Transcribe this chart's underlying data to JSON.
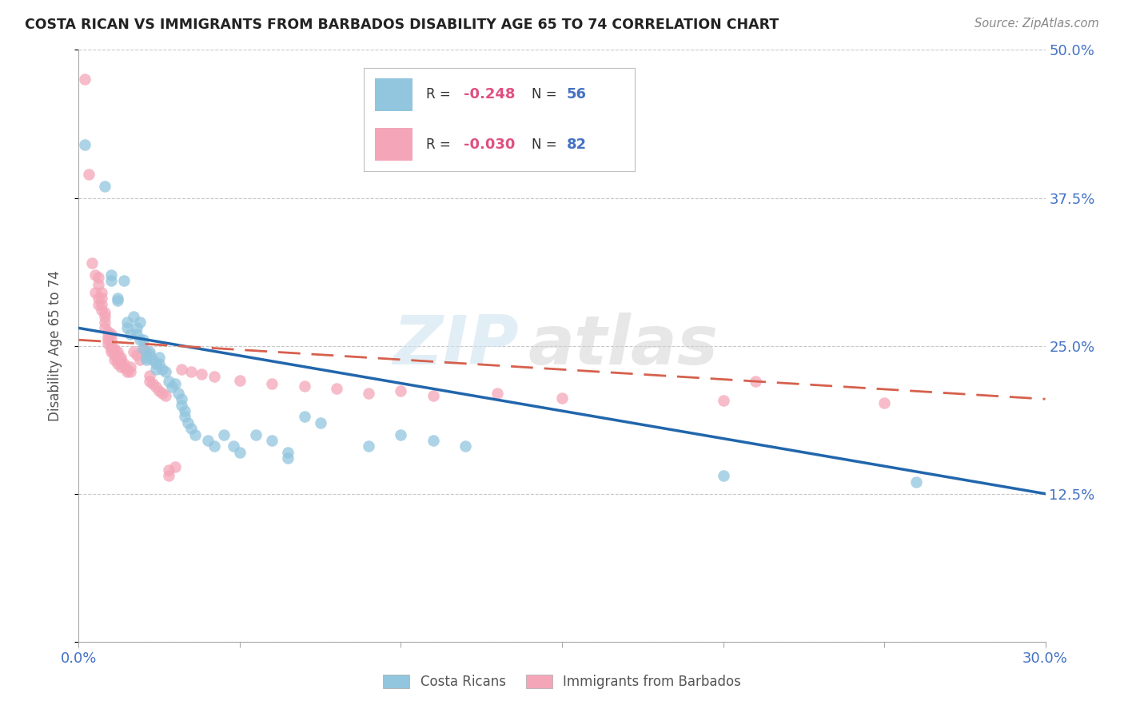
{
  "title": "COSTA RICAN VS IMMIGRANTS FROM BARBADOS DISABILITY AGE 65 TO 74 CORRELATION CHART",
  "source": "Source: ZipAtlas.com",
  "ylabel": "Disability Age 65 to 74",
  "xlim": [
    0.0,
    0.3
  ],
  "ylim": [
    0.0,
    0.5
  ],
  "yticks": [
    0.0,
    0.125,
    0.25,
    0.375,
    0.5
  ],
  "ytick_labels": [
    "",
    "12.5%",
    "25.0%",
    "37.5%",
    "50.0%"
  ],
  "xticks": [
    0.0,
    0.05,
    0.1,
    0.15,
    0.2,
    0.25,
    0.3
  ],
  "xtick_labels": [
    "0.0%",
    "",
    "",
    "",
    "",
    "",
    "30.0%"
  ],
  "blue_color": "#92c5de",
  "pink_color": "#f4a6b8",
  "trendline_blue": "#2166ac",
  "trendline_pink": "#d6604d",
  "tick_label_color": "#4472c4",
  "grid_color": "#c8c8c8",
  "watermark_zip": "ZIP",
  "watermark_atlas": "atlas",
  "trendline_blue_x0": 0.0,
  "trendline_blue_y0": 0.265,
  "trendline_blue_x1": 0.3,
  "trendline_blue_y1": 0.125,
  "trendline_pink_x0": 0.0,
  "trendline_pink_y0": 0.255,
  "trendline_pink_x1": 0.3,
  "trendline_pink_y1": 0.205,
  "blue_scatter": [
    [
      0.002,
      0.42
    ],
    [
      0.008,
      0.385
    ],
    [
      0.01,
      0.31
    ],
    [
      0.01,
      0.305
    ],
    [
      0.012,
      0.29
    ],
    [
      0.012,
      0.288
    ],
    [
      0.014,
      0.305
    ],
    [
      0.015,
      0.27
    ],
    [
      0.015,
      0.265
    ],
    [
      0.016,
      0.26
    ],
    [
      0.017,
      0.275
    ],
    [
      0.018,
      0.265
    ],
    [
      0.018,
      0.26
    ],
    [
      0.019,
      0.27
    ],
    [
      0.019,
      0.255
    ],
    [
      0.02,
      0.255
    ],
    [
      0.02,
      0.248
    ],
    [
      0.021,
      0.24
    ],
    [
      0.021,
      0.238
    ],
    [
      0.022,
      0.245
    ],
    [
      0.022,
      0.242
    ],
    [
      0.023,
      0.238
    ],
    [
      0.024,
      0.235
    ],
    [
      0.024,
      0.23
    ],
    [
      0.025,
      0.24
    ],
    [
      0.025,
      0.235
    ],
    [
      0.026,
      0.23
    ],
    [
      0.027,
      0.228
    ],
    [
      0.028,
      0.22
    ],
    [
      0.029,
      0.215
    ],
    [
      0.03,
      0.218
    ],
    [
      0.031,
      0.21
    ],
    [
      0.032,
      0.205
    ],
    [
      0.032,
      0.2
    ],
    [
      0.033,
      0.195
    ],
    [
      0.033,
      0.19
    ],
    [
      0.034,
      0.185
    ],
    [
      0.035,
      0.18
    ],
    [
      0.036,
      0.175
    ],
    [
      0.04,
      0.17
    ],
    [
      0.042,
      0.165
    ],
    [
      0.045,
      0.175
    ],
    [
      0.048,
      0.165
    ],
    [
      0.05,
      0.16
    ],
    [
      0.055,
      0.175
    ],
    [
      0.06,
      0.17
    ],
    [
      0.065,
      0.16
    ],
    [
      0.065,
      0.155
    ],
    [
      0.07,
      0.19
    ],
    [
      0.075,
      0.185
    ],
    [
      0.09,
      0.165
    ],
    [
      0.1,
      0.175
    ],
    [
      0.11,
      0.17
    ],
    [
      0.12,
      0.165
    ],
    [
      0.2,
      0.14
    ],
    [
      0.26,
      0.135
    ]
  ],
  "pink_scatter": [
    [
      0.002,
      0.475
    ],
    [
      0.003,
      0.395
    ],
    [
      0.004,
      0.32
    ],
    [
      0.005,
      0.31
    ],
    [
      0.005,
      0.295
    ],
    [
      0.006,
      0.29
    ],
    [
      0.006,
      0.285
    ],
    [
      0.006,
      0.308
    ],
    [
      0.006,
      0.302
    ],
    [
      0.007,
      0.295
    ],
    [
      0.007,
      0.29
    ],
    [
      0.007,
      0.285
    ],
    [
      0.007,
      0.28
    ],
    [
      0.008,
      0.278
    ],
    [
      0.008,
      0.275
    ],
    [
      0.008,
      0.27
    ],
    [
      0.008,
      0.265
    ],
    [
      0.009,
      0.262
    ],
    [
      0.009,
      0.258
    ],
    [
      0.009,
      0.255
    ],
    [
      0.009,
      0.252
    ],
    [
      0.01,
      0.26
    ],
    [
      0.01,
      0.255
    ],
    [
      0.01,
      0.25
    ],
    [
      0.01,
      0.248
    ],
    [
      0.01,
      0.245
    ],
    [
      0.011,
      0.248
    ],
    [
      0.011,
      0.245
    ],
    [
      0.011,
      0.242
    ],
    [
      0.011,
      0.238
    ],
    [
      0.012,
      0.245
    ],
    [
      0.012,
      0.242
    ],
    [
      0.012,
      0.238
    ],
    [
      0.012,
      0.235
    ],
    [
      0.013,
      0.24
    ],
    [
      0.013,
      0.238
    ],
    [
      0.013,
      0.235
    ],
    [
      0.013,
      0.232
    ],
    [
      0.014,
      0.235
    ],
    [
      0.014,
      0.232
    ],
    [
      0.015,
      0.23
    ],
    [
      0.015,
      0.228
    ],
    [
      0.016,
      0.232
    ],
    [
      0.016,
      0.228
    ],
    [
      0.017,
      0.245
    ],
    [
      0.018,
      0.242
    ],
    [
      0.019,
      0.238
    ],
    [
      0.02,
      0.248
    ],
    [
      0.021,
      0.245
    ],
    [
      0.022,
      0.225
    ],
    [
      0.022,
      0.22
    ],
    [
      0.023,
      0.218
    ],
    [
      0.024,
      0.215
    ],
    [
      0.025,
      0.212
    ],
    [
      0.026,
      0.21
    ],
    [
      0.027,
      0.208
    ],
    [
      0.028,
      0.145
    ],
    [
      0.028,
      0.14
    ],
    [
      0.03,
      0.148
    ],
    [
      0.032,
      0.23
    ],
    [
      0.035,
      0.228
    ],
    [
      0.038,
      0.226
    ],
    [
      0.042,
      0.224
    ],
    [
      0.05,
      0.221
    ],
    [
      0.06,
      0.218
    ],
    [
      0.07,
      0.216
    ],
    [
      0.08,
      0.214
    ],
    [
      0.09,
      0.21
    ],
    [
      0.1,
      0.212
    ],
    [
      0.11,
      0.208
    ],
    [
      0.13,
      0.21
    ],
    [
      0.15,
      0.206
    ],
    [
      0.2,
      0.204
    ],
    [
      0.21,
      0.22
    ],
    [
      0.25,
      0.202
    ]
  ]
}
